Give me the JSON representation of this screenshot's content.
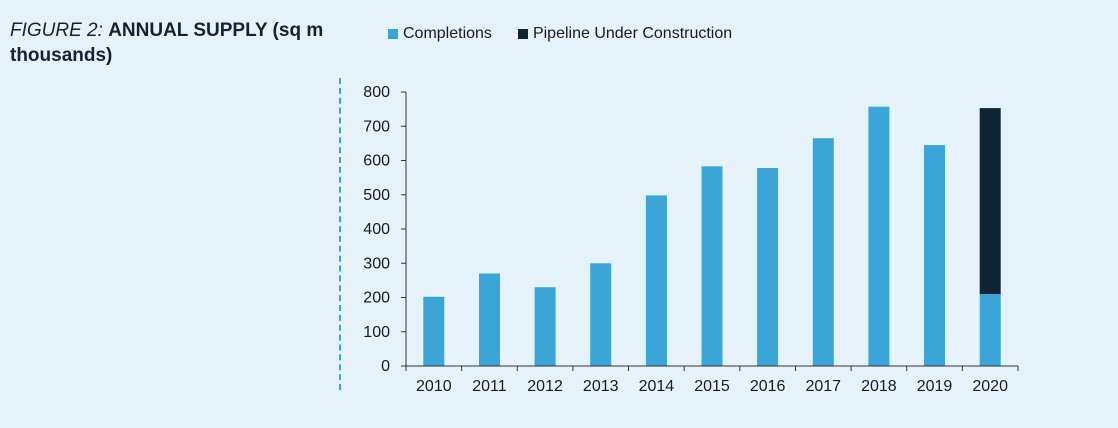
{
  "figure": {
    "label": "FIGURE 2:",
    "title": "ANNUAL SUPPLY (sq m thousands)"
  },
  "chart_data": {
    "type": "bar",
    "stacked": true,
    "title": "ANNUAL SUPPLY (sq m thousands)",
    "xlabel": "",
    "ylabel": "",
    "categories": [
      "2010",
      "2011",
      "2012",
      "2013",
      "2014",
      "2015",
      "2016",
      "2017",
      "2018",
      "2019",
      "2020"
    ],
    "series": [
      {
        "name": "Completions",
        "color": "#3aa6d8",
        "values": [
          202,
          270,
          230,
          300,
          498,
          583,
          578,
          665,
          757,
          645,
          210
        ]
      },
      {
        "name": "Pipeline Under Construction",
        "color": "#0d2533",
        "values": [
          0,
          0,
          0,
          0,
          0,
          0,
          0,
          0,
          0,
          0,
          543
        ]
      }
    ],
    "ylim": [
      0,
      800
    ],
    "yticks": [
      0,
      100,
      200,
      300,
      400,
      500,
      600,
      700,
      800
    ],
    "grid": false,
    "legend_position": "top"
  }
}
